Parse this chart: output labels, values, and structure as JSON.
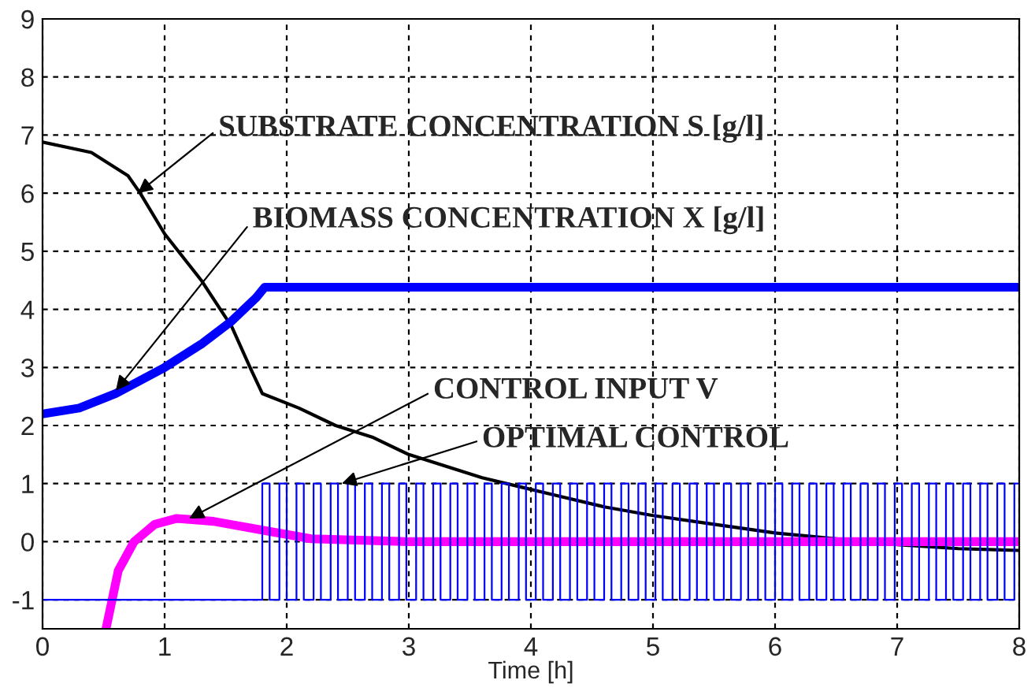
{
  "chart_data": {
    "type": "line",
    "xlabel": "Time [h]",
    "xlim": [
      0,
      8
    ],
    "ylim": [
      -1.5,
      9
    ],
    "xticks": [
      0,
      1,
      2,
      3,
      4,
      5,
      6,
      7,
      8
    ],
    "yticks": [
      -1,
      0,
      1,
      2,
      3,
      4,
      5,
      6,
      7,
      8,
      9
    ],
    "grid": true,
    "line_style": "solid",
    "series": [
      {
        "color": "#000000",
        "x": [
          0,
          0.4,
          0.7,
          0.8,
          1.0,
          1.3,
          1.55,
          1.7,
          1.8,
          2.1,
          2.4,
          2.7,
          3.0,
          3.3,
          3.6,
          3.9,
          4.2,
          4.6,
          5.0,
          5.5,
          6.0,
          6.5,
          7.0,
          7.5,
          8.0
        ],
        "values": [
          6.88,
          6.7,
          6.3,
          6.0,
          5.3,
          4.5,
          3.7,
          3.0,
          2.55,
          2.3,
          2.0,
          1.8,
          1.5,
          1.3,
          1.1,
          0.95,
          0.8,
          0.6,
          0.45,
          0.3,
          0.15,
          0.05,
          -0.05,
          -0.12,
          -0.15
        ]
      },
      {
        "color": "#0000ff",
        "x": [
          0,
          0.3,
          0.6,
          1.0,
          1.3,
          1.55,
          1.75,
          1.82,
          8.0
        ],
        "values": [
          2.2,
          2.3,
          2.55,
          3.0,
          3.4,
          3.8,
          4.2,
          4.38,
          4.38
        ]
      },
      {
        "color": "#ff00ff",
        "x": [
          0.52,
          0.62,
          0.75,
          0.92,
          1.1,
          1.4,
          1.8,
          2.2,
          3.0,
          8.0
        ],
        "values": [
          -1.5,
          -0.5,
          0.0,
          0.3,
          0.4,
          0.35,
          0.2,
          0.05,
          0.0,
          0.0
        ]
      },
      {
        "type": "step",
        "color": "#0000ff",
        "x": [
          0,
          1.8,
          1.86,
          1.94,
          2.0,
          2.08,
          2.14,
          2.22,
          2.28,
          2.36,
          2.42,
          2.5,
          2.56,
          2.64,
          2.7,
          2.78,
          2.84,
          2.92,
          2.98,
          3.06,
          3.12,
          3.2,
          3.26,
          3.34,
          3.4,
          3.48,
          3.54,
          3.62,
          3.68,
          3.76,
          3.82,
          3.9,
          3.96,
          4.04,
          4.1,
          4.18,
          4.24,
          4.32,
          4.38,
          4.46,
          4.52,
          4.6,
          4.66,
          4.74,
          4.8,
          4.88,
          4.94,
          5.02,
          5.08,
          5.16,
          5.22,
          5.3,
          5.36,
          5.44,
          5.5,
          5.58,
          5.64,
          5.72,
          5.78,
          5.86,
          5.92,
          6.0,
          6.06,
          6.14,
          6.2,
          6.28,
          6.34,
          6.42,
          6.48,
          6.56,
          6.62,
          6.7,
          6.76,
          6.84,
          6.9,
          6.98,
          7.04,
          7.12,
          7.18,
          7.26,
          7.32,
          7.4,
          7.46,
          7.54,
          7.6,
          7.68,
          7.74,
          7.82,
          7.88,
          7.96,
          8.0
        ],
        "values": [
          -1,
          1,
          -1,
          1,
          -1,
          1,
          -1,
          1,
          -1,
          1,
          -1,
          1,
          -1,
          1,
          -1,
          1,
          -1,
          1,
          -1,
          1,
          -1,
          1,
          -1,
          1,
          -1,
          1,
          -1,
          1,
          -1,
          1,
          -1,
          1,
          -1,
          1,
          -1,
          1,
          -1,
          1,
          -1,
          1,
          -1,
          1,
          -1,
          1,
          -1,
          1,
          -1,
          1,
          -1,
          1,
          -1,
          1,
          -1,
          1,
          -1,
          1,
          -1,
          1,
          -1,
          1,
          -1,
          1,
          -1,
          1,
          -1,
          1,
          -1,
          1,
          -1,
          1,
          -1,
          1,
          -1,
          1,
          -1,
          1,
          -1,
          1,
          -1,
          1,
          -1,
          1,
          -1,
          1,
          -1,
          1,
          -1,
          1,
          -1,
          1,
          1
        ]
      }
    ],
    "annotations": [
      {
        "text": "SUBSTRATE CONCENTRATION S [g/l]",
        "x": 0.78,
        "y": 6.0
      },
      {
        "text": "BIOMASS CONCENTRATION X [g/l]",
        "x": 0.6,
        "y": 2.6
      },
      {
        "text": "CONTROL INPUT V",
        "x": 1.2,
        "y": 0.4
      },
      {
        "text": "OPTIMAL CONTROL",
        "x": 2.45,
        "y": 1.0
      }
    ]
  }
}
